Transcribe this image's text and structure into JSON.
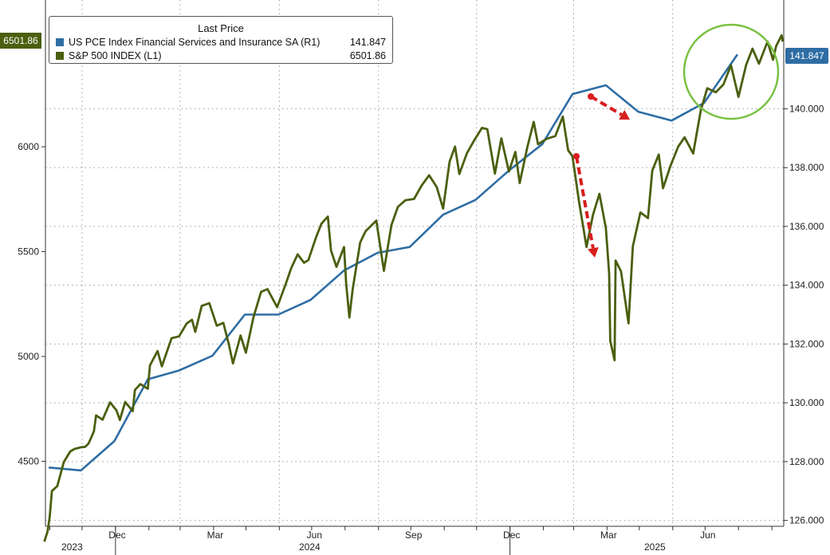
{
  "colors": {
    "sp500": "#4b5f0f",
    "pce": "#2e6da4",
    "arrow": "#d91e1e",
    "highlight_circle": "#7ac143",
    "grid": "#9a9a9a"
  },
  "legend": {
    "title": "Last Price",
    "entries": [
      {
        "name": "US PCE Index Financial Services and Insurance SA  (R1)",
        "value": "141.847",
        "color": "#2e6da4"
      },
      {
        "name": "S&P 500 INDEX  (L1)",
        "value": "6501.86",
        "color": "#4b5f0f"
      }
    ]
  },
  "tags": {
    "right_last": "141.847",
    "left_last": "6501.86"
  },
  "chart_data": {
    "type": "line",
    "title": "",
    "x_ticks": [
      "Dec",
      "Mar",
      "Jun",
      "Sep",
      "Dec",
      "Mar",
      "Jun"
    ],
    "year_labels": [
      "2023",
      "2024",
      "2025"
    ],
    "left_axis": {
      "ticks": [
        4500,
        5000,
        5500,
        6000
      ],
      "range": [
        4190,
        6700
      ]
    },
    "right_axis": {
      "ticks": [
        "126.000",
        "128.000",
        "130.000",
        "132.000",
        "134.000",
        "136.000",
        "138.000",
        "140.000"
      ],
      "range": [
        125.8,
        143.7
      ]
    },
    "x_range": [
      "2023-10-28",
      "2025-09-12"
    ],
    "grid": true,
    "series": [
      {
        "name": "US PCE Index Financial Services and Insurance SA  (R1)",
        "axis": "right",
        "points": [
          [
            "2023-10-31",
            127.8
          ],
          [
            "2023-11-30",
            127.7
          ],
          [
            "2023-12-31",
            128.7
          ],
          [
            "2024-01-31",
            130.8
          ],
          [
            "2024-02-29",
            131.1
          ],
          [
            "2024-03-31",
            131.6
          ],
          [
            "2024-04-30",
            133.0
          ],
          [
            "2024-05-31",
            133.0
          ],
          [
            "2024-06-30",
            133.5
          ],
          [
            "2024-07-31",
            134.5
          ],
          [
            "2024-08-31",
            135.1
          ],
          [
            "2024-09-30",
            135.3
          ],
          [
            "2024-10-31",
            136.4
          ],
          [
            "2024-11-30",
            136.9
          ],
          [
            "2024-12-31",
            137.9
          ],
          [
            "2025-01-31",
            138.8
          ],
          [
            "2025-02-28",
            140.5
          ],
          [
            "2025-03-31",
            140.8
          ],
          [
            "2025-04-30",
            139.9
          ],
          [
            "2025-05-31",
            139.6
          ],
          [
            "2025-06-30",
            140.2
          ],
          [
            "2025-07-31",
            141.847
          ]
        ]
      },
      {
        "name": "S&P 500 INDEX  (L1)",
        "axis": "left",
        "points": [
          [
            "2023-10-27",
            4117
          ],
          [
            "2023-10-30",
            4166
          ],
          [
            "2023-11-01",
            4237
          ],
          [
            "2023-11-03",
            4358
          ],
          [
            "2023-11-08",
            4382
          ],
          [
            "2023-11-14",
            4496
          ],
          [
            "2023-11-20",
            4547
          ],
          [
            "2023-11-24",
            4559
          ],
          [
            "2023-11-30",
            4567
          ],
          [
            "2023-12-04",
            4569
          ],
          [
            "2023-12-07",
            4585
          ],
          [
            "2023-12-12",
            4643
          ],
          [
            "2023-12-14",
            4719
          ],
          [
            "2023-12-20",
            4698
          ],
          [
            "2023-12-27",
            4781
          ],
          [
            "2024-01-02",
            4742
          ],
          [
            "2024-01-05",
            4697
          ],
          [
            "2024-01-10",
            4783
          ],
          [
            "2024-01-17",
            4739
          ],
          [
            "2024-01-19",
            4840
          ],
          [
            "2024-01-24",
            4868
          ],
          [
            "2024-01-31",
            4846
          ],
          [
            "2024-02-02",
            4958
          ],
          [
            "2024-02-09",
            5026
          ],
          [
            "2024-02-13",
            4953
          ],
          [
            "2024-02-22",
            5087
          ],
          [
            "2024-02-29",
            5096
          ],
          [
            "2024-03-07",
            5157
          ],
          [
            "2024-03-12",
            5175
          ],
          [
            "2024-03-15",
            5117
          ],
          [
            "2024-03-21",
            5241
          ],
          [
            "2024-03-28",
            5254
          ],
          [
            "2024-04-04",
            5147
          ],
          [
            "2024-04-10",
            5160
          ],
          [
            "2024-04-15",
            5061
          ],
          [
            "2024-04-19",
            4967
          ],
          [
            "2024-04-26",
            5100
          ],
          [
            "2024-05-01",
            5018
          ],
          [
            "2024-05-08",
            5187
          ],
          [
            "2024-05-15",
            5308
          ],
          [
            "2024-05-21",
            5321
          ],
          [
            "2024-05-30",
            5235
          ],
          [
            "2024-06-07",
            5347
          ],
          [
            "2024-06-12",
            5421
          ],
          [
            "2024-06-18",
            5487
          ],
          [
            "2024-06-24",
            5447
          ],
          [
            "2024-06-28",
            5460
          ],
          [
            "2024-07-05",
            5567
          ],
          [
            "2024-07-10",
            5633
          ],
          [
            "2024-07-16",
            5667
          ],
          [
            "2024-07-19",
            5505
          ],
          [
            "2024-07-24",
            5427
          ],
          [
            "2024-07-31",
            5522
          ],
          [
            "2024-08-02",
            5346
          ],
          [
            "2024-08-05",
            5186
          ],
          [
            "2024-08-08",
            5319
          ],
          [
            "2024-08-15",
            5543
          ],
          [
            "2024-08-20",
            5597
          ],
          [
            "2024-08-30",
            5648
          ],
          [
            "2024-09-06",
            5408
          ],
          [
            "2024-09-13",
            5626
          ],
          [
            "2024-09-19",
            5713
          ],
          [
            "2024-09-26",
            5745
          ],
          [
            "2024-10-04",
            5751
          ],
          [
            "2024-10-11",
            5815
          ],
          [
            "2024-10-18",
            5864
          ],
          [
            "2024-10-25",
            5808
          ],
          [
            "2024-10-31",
            5705
          ],
          [
            "2024-11-06",
            5929
          ],
          [
            "2024-11-11",
            6001
          ],
          [
            "2024-11-15",
            5870
          ],
          [
            "2024-11-22",
            5969
          ],
          [
            "2024-11-29",
            6032
          ],
          [
            "2024-12-06",
            6090
          ],
          [
            "2024-12-11",
            6084
          ],
          [
            "2024-12-18",
            5872
          ],
          [
            "2024-12-24",
            6040
          ],
          [
            "2024-12-31",
            5882
          ],
          [
            "2025-01-06",
            5975
          ],
          [
            "2025-01-10",
            5827
          ],
          [
            "2025-01-17",
            5997
          ],
          [
            "2025-01-23",
            6119
          ],
          [
            "2025-01-27",
            6012
          ],
          [
            "2025-02-04",
            6038
          ],
          [
            "2025-02-12",
            6051
          ],
          [
            "2025-02-19",
            6144
          ],
          [
            "2025-02-24",
            5983
          ],
          [
            "2025-02-28",
            5955
          ],
          [
            "2025-03-06",
            5739
          ],
          [
            "2025-03-10",
            5615
          ],
          [
            "2025-03-13",
            5522
          ],
          [
            "2025-03-19",
            5675
          ],
          [
            "2025-03-25",
            5776
          ],
          [
            "2025-03-31",
            5612
          ],
          [
            "2025-04-03",
            5396
          ],
          [
            "2025-04-04",
            5074
          ],
          [
            "2025-04-08",
            4982
          ],
          [
            "2025-04-09",
            5457
          ],
          [
            "2025-04-14",
            5406
          ],
          [
            "2025-04-21",
            5158
          ],
          [
            "2025-04-25",
            5525
          ],
          [
            "2025-05-02",
            5687
          ],
          [
            "2025-05-09",
            5660
          ],
          [
            "2025-05-13",
            5886
          ],
          [
            "2025-05-19",
            5963
          ],
          [
            "2025-05-23",
            5802
          ],
          [
            "2025-05-30",
            5911
          ],
          [
            "2025-06-06",
            6000
          ],
          [
            "2025-06-12",
            6045
          ],
          [
            "2025-06-20",
            5968
          ],
          [
            "2025-06-27",
            6173
          ],
          [
            "2025-07-03",
            6279
          ],
          [
            "2025-07-11",
            6260
          ],
          [
            "2025-07-18",
            6297
          ],
          [
            "2025-07-25",
            6389
          ],
          [
            "2025-08-01",
            6238
          ],
          [
            "2025-08-08",
            6389
          ],
          [
            "2025-08-14",
            6468
          ],
          [
            "2025-08-20",
            6396
          ],
          [
            "2025-08-28",
            6502
          ],
          [
            "2025-09-02",
            6415
          ],
          [
            "2025-09-05",
            6481
          ],
          [
            "2025-09-10",
            6532
          ],
          [
            "2025-09-11",
            6501.86
          ]
        ]
      }
    ]
  }
}
